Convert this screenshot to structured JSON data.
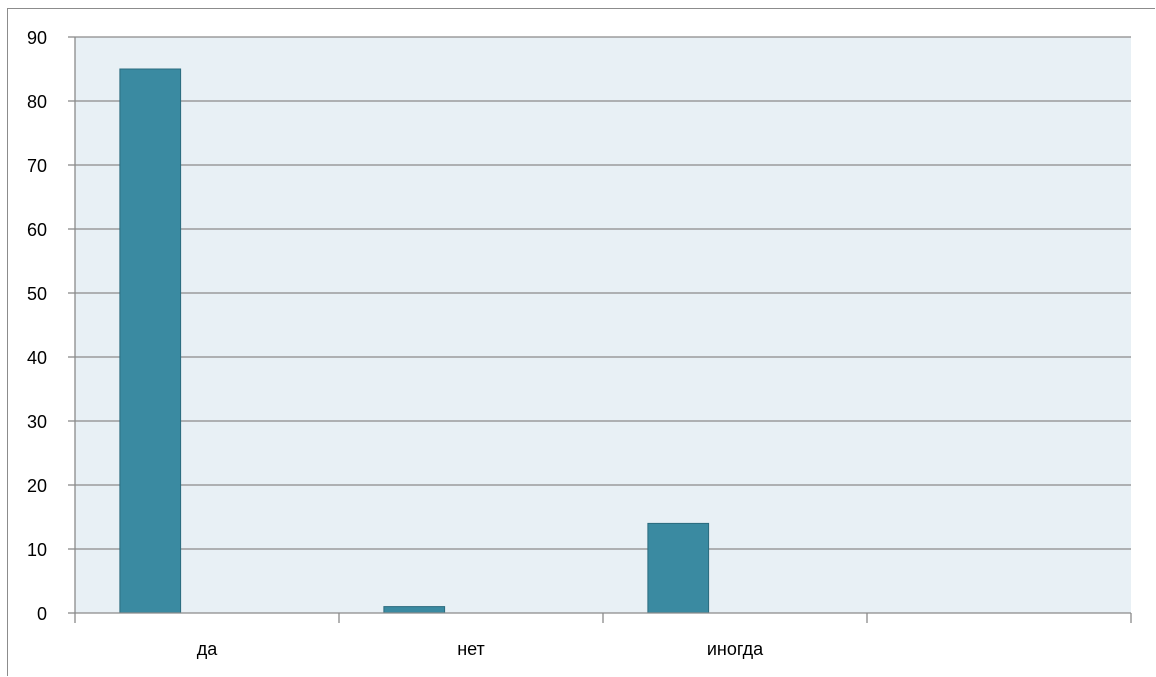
{
  "chart_data": {
    "type": "bar",
    "title": "",
    "xlabel": "",
    "ylabel": "",
    "categories": [
      "да",
      "нет",
      "иногда",
      ""
    ],
    "values": [
      85,
      1,
      14,
      null
    ],
    "ylim": [
      0,
      90
    ],
    "yticks": [
      0,
      10,
      20,
      30,
      40,
      50,
      60,
      70,
      80,
      90
    ],
    "grid": true,
    "legend": "none",
    "colors": {
      "bar": "#3a8aa1",
      "bar_border": "#2b6b7e",
      "plot_background": "#e8f0f5",
      "grid": "#8a8a8a",
      "axis": "#8a8a8a"
    }
  }
}
